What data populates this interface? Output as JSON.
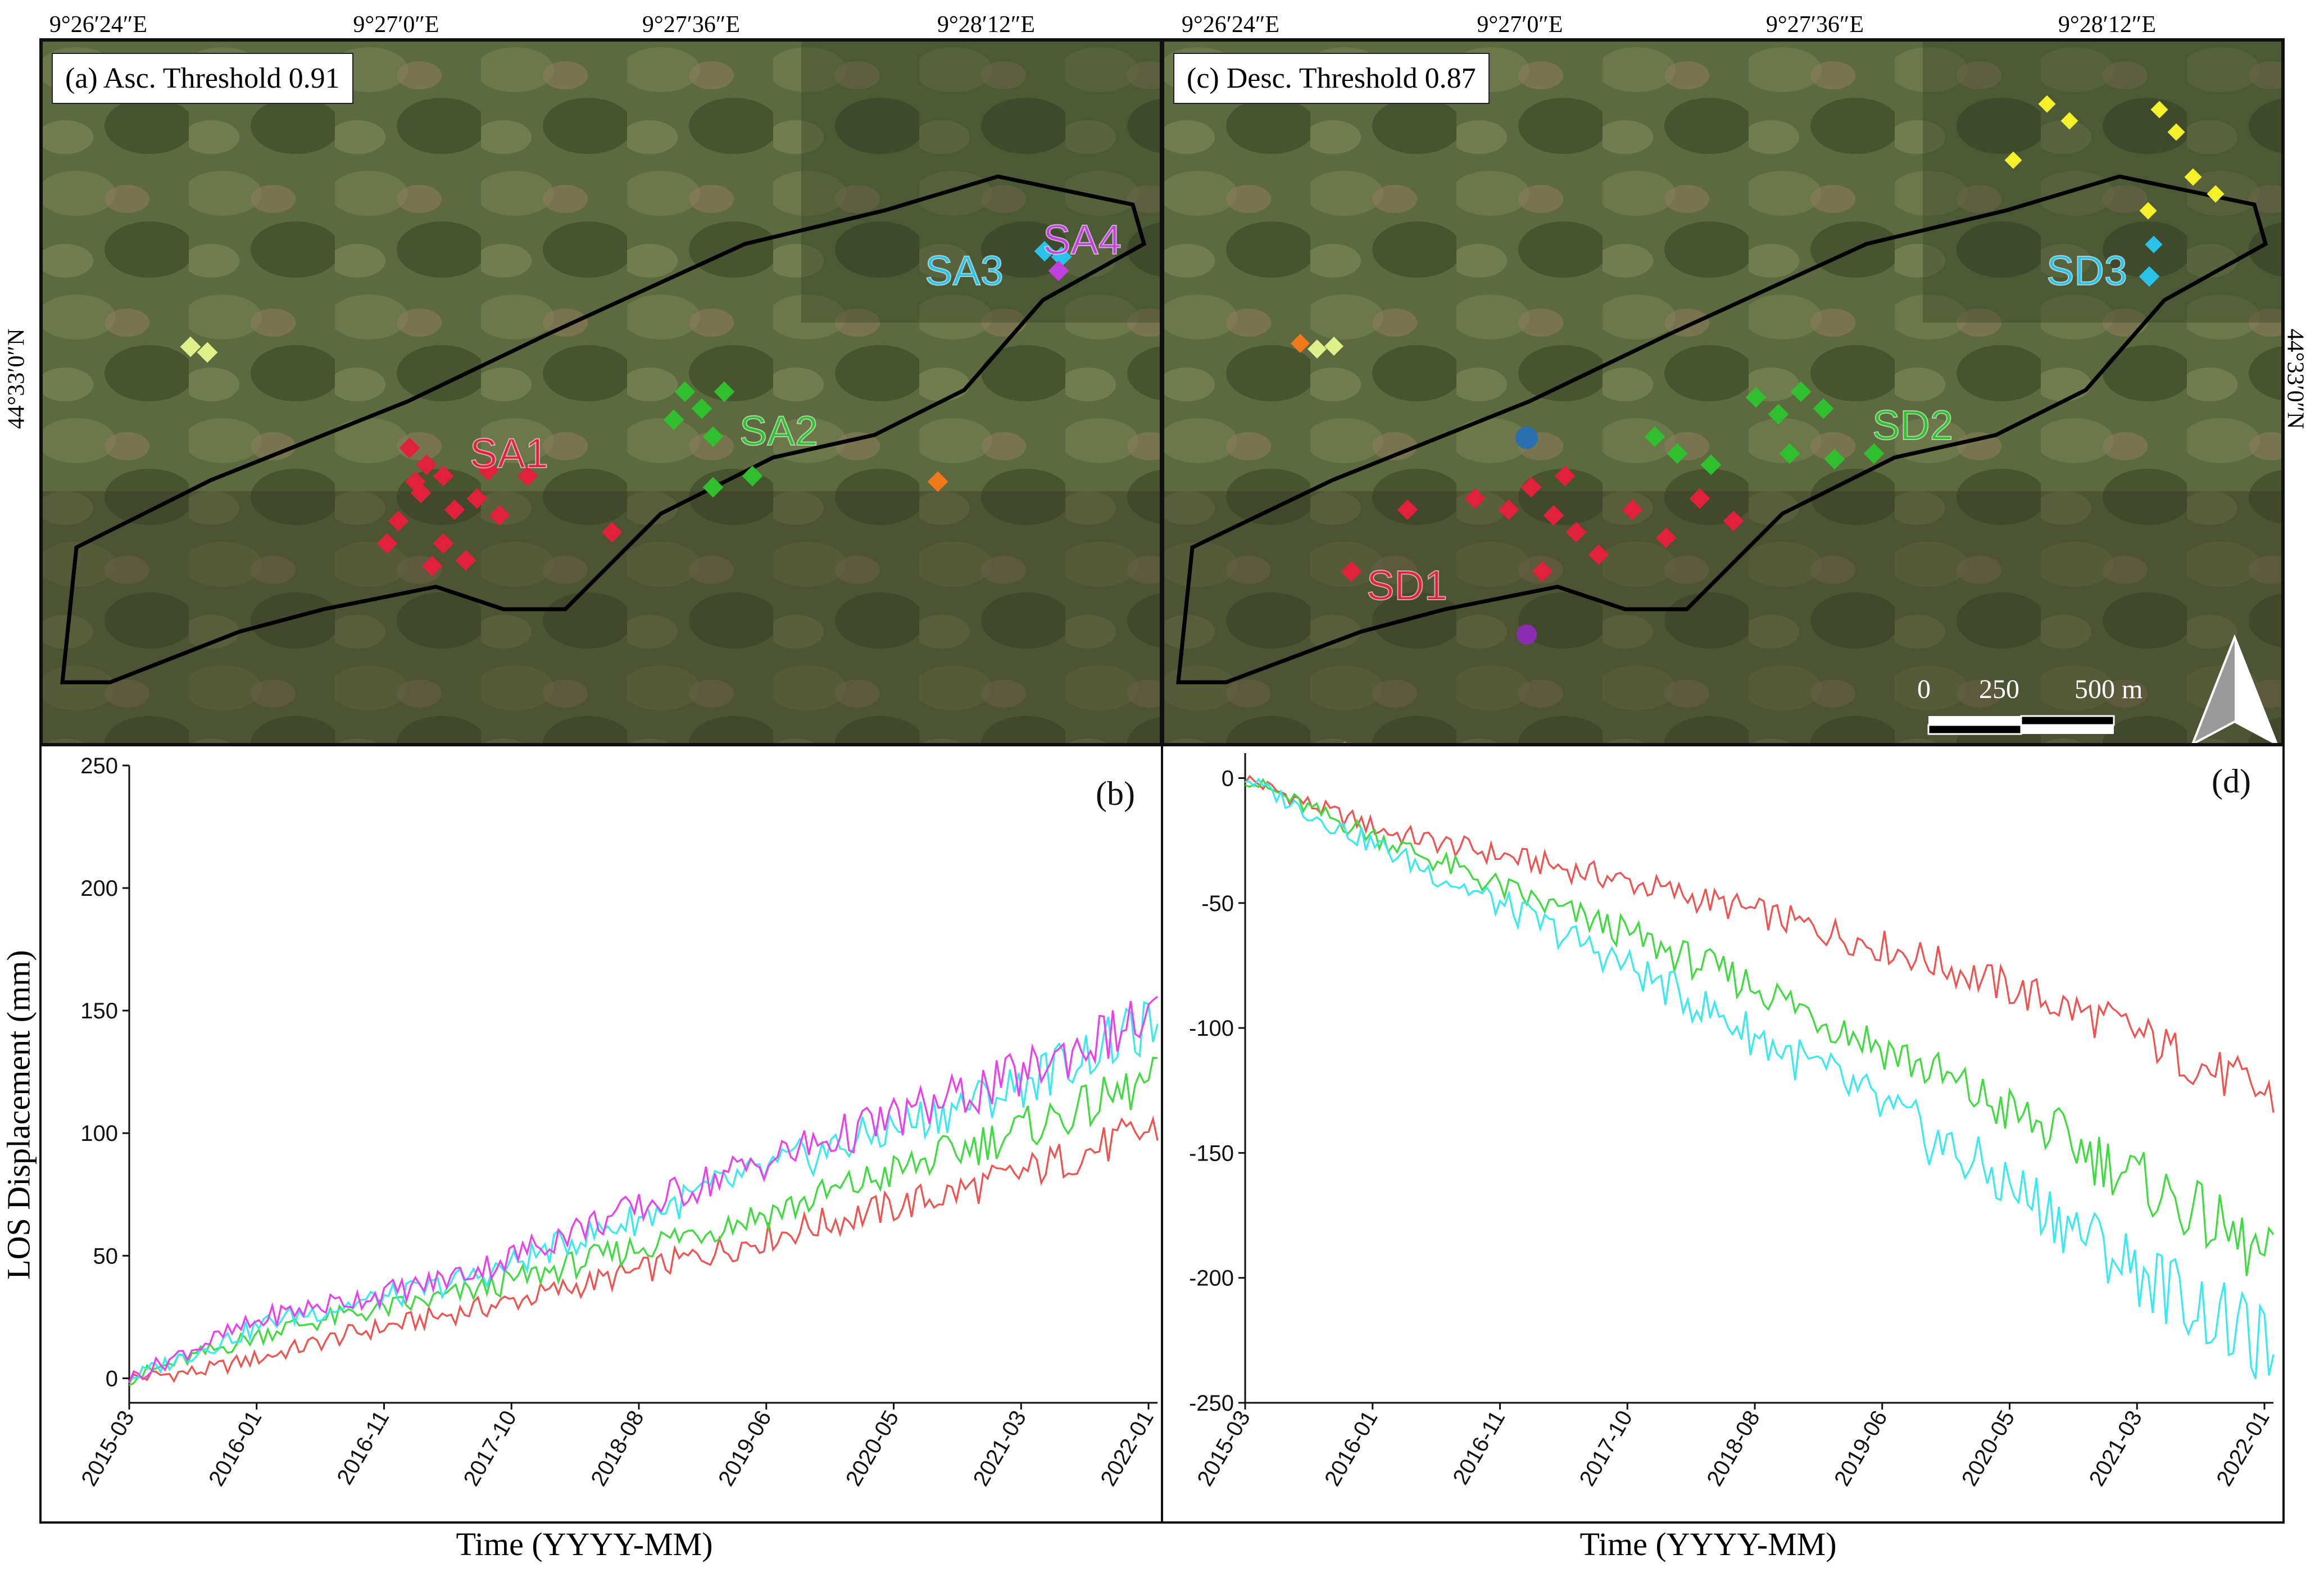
{
  "map_top": {
    "lon_labels": [
      "9°26′24″E",
      "9°27′0″E",
      "9°27′36″E",
      "9°28′12″E"
    ],
    "lat_label": "44°33′0″N"
  },
  "panel_a": {
    "title": "(a) Asc. Threshold 0.91",
    "clusters": [
      {
        "label": "SA1",
        "color": "#e0203c"
      },
      {
        "label": "SA2",
        "color": "#2fbf2f"
      },
      {
        "label": "SA3",
        "color": "#29c2e8"
      },
      {
        "label": "SA4",
        "color": "#c040e0"
      }
    ]
  },
  "panel_c": {
    "title": "(c) Desc. Threshold 0.87",
    "clusters": [
      {
        "label": "SD1",
        "color": "#e0203c"
      },
      {
        "label": "SD2",
        "color": "#2fbf2f"
      },
      {
        "label": "SD3",
        "color": "#29c2e8"
      }
    ],
    "scale": {
      "labels": [
        "0",
        "250",
        "500 m"
      ]
    }
  },
  "chart_data": [
    {
      "type": "line",
      "panel": "(b)",
      "title": "",
      "xlabel": "Time (YYYY-MM)",
      "ylabel": "LOS Displacement (mm)",
      "xticks": [
        "2015-03",
        "2016-01",
        "2016-11",
        "2017-10",
        "2018-08",
        "2019-06",
        "2020-05",
        "2021-03",
        "2022-01"
      ],
      "yticks": [
        0,
        50,
        100,
        150,
        200,
        250
      ],
      "ylim": [
        -10,
        250
      ],
      "xlim": [
        0,
        84
      ],
      "series": [
        {
          "name": "SA1",
          "color": "#f2514e",
          "x": [
            0,
            6,
            12,
            18,
            24,
            30,
            36,
            42,
            48,
            54,
            60,
            66,
            72,
            78,
            84
          ],
          "values": [
            0,
            3,
            10,
            18,
            24,
            30,
            37,
            44,
            52,
            60,
            67,
            74,
            82,
            92,
            102
          ]
        },
        {
          "name": "SA2",
          "color": "#3ddc3d",
          "x": [
            0,
            6,
            12,
            18,
            24,
            30,
            36,
            42,
            48,
            54,
            60,
            66,
            72,
            78,
            84
          ],
          "values": [
            0,
            10,
            20,
            26,
            31,
            38,
            46,
            54,
            62,
            70,
            80,
            90,
            100,
            110,
            122
          ]
        },
        {
          "name": "SA3",
          "color": "#35eaf2",
          "x": [
            0,
            6,
            12,
            18,
            24,
            30,
            36,
            42,
            48,
            54,
            60,
            66,
            72,
            78,
            84
          ],
          "values": [
            0,
            12,
            24,
            30,
            36,
            44,
            56,
            66,
            78,
            88,
            98,
            108,
            118,
            132,
            145
          ]
        },
        {
          "name": "SA4",
          "color": "#ee3cf0",
          "x": [
            0,
            6,
            12,
            18,
            24,
            30,
            36,
            42,
            48,
            54,
            60,
            66,
            72,
            78,
            84
          ],
          "values": [
            0,
            14,
            26,
            32,
            38,
            47,
            60,
            70,
            82,
            92,
            102,
            112,
            122,
            136,
            148
          ]
        }
      ]
    },
    {
      "type": "line",
      "panel": "(d)",
      "title": "",
      "xlabel": "Time (YYYY-MM)",
      "ylabel": "",
      "xticks": [
        "2015-03",
        "2016-01",
        "2016-11",
        "2017-10",
        "2018-08",
        "2019-06",
        "2020-05",
        "2021-03",
        "2022-01"
      ],
      "yticks": [
        0,
        -50,
        -100,
        -150,
        -200,
        -250
      ],
      "ylim": [
        -250,
        10
      ],
      "xlim": [
        0,
        84
      ],
      "series": [
        {
          "name": "SD1",
          "color": "#f2514e",
          "x": [
            0,
            6,
            12,
            18,
            24,
            30,
            36,
            42,
            48,
            54,
            60,
            66,
            72,
            78,
            84
          ],
          "values": [
            0,
            -12,
            -22,
            -28,
            -34,
            -40,
            -47,
            -54,
            -62,
            -70,
            -80,
            -90,
            -100,
            -115,
            -128
          ]
        },
        {
          "name": "SD2",
          "color": "#3ddc3d",
          "x": [
            0,
            6,
            12,
            18,
            24,
            30,
            36,
            42,
            48,
            54,
            60,
            66,
            72,
            78,
            84
          ],
          "values": [
            0,
            -14,
            -26,
            -38,
            -50,
            -60,
            -72,
            -84,
            -98,
            -112,
            -128,
            -142,
            -158,
            -175,
            -195
          ]
        },
        {
          "name": "SD3",
          "color": "#35eaf2",
          "x": [
            0,
            6,
            12,
            18,
            24,
            30,
            36,
            42,
            48,
            54,
            60,
            66,
            72,
            78,
            84
          ],
          "values": [
            0,
            -16,
            -30,
            -44,
            -58,
            -72,
            -88,
            -104,
            -120,
            -138,
            -156,
            -174,
            -194,
            -212,
            -230
          ]
        }
      ]
    }
  ]
}
